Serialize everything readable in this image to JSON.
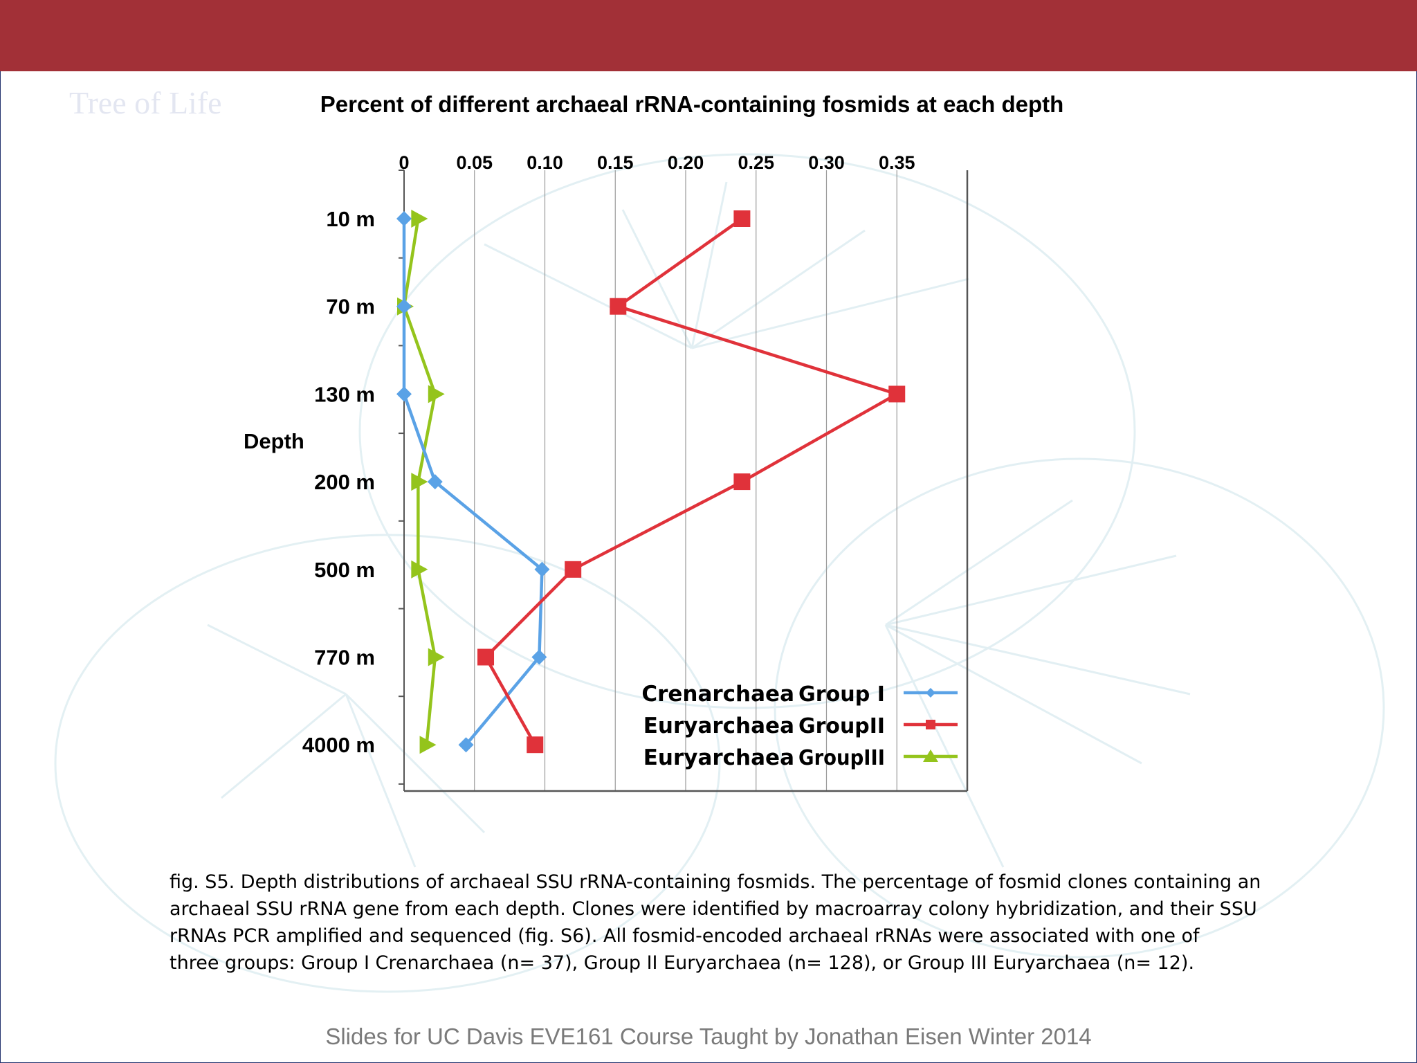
{
  "slide": {
    "background_heading": "Tree of Life",
    "caption_lines": [
      "fig. S5. Depth distributions of archaeal SSU rRNA-containing fosmids.  The percentage of fosmid clones containing an",
      "archaeal SSU rRNA gene from each depth. Clones were identified by macroarray colony hybridization, and their SSU",
      "rRNAs PCR amplified and sequenced (fig. S6).  All fosmid-encoded archaeal rRNAs were associated with one of",
      "three groups:  Group I Crenarchaea (n= 37), Group II Euryarchaea (n= 128),  or Group III Euryarchaea (n= 12)."
    ],
    "footer": "Slides for UC Davis EVE161 Course Taught by Jonathan Eisen Winter 2014",
    "colors": {
      "header_bar": "#a23037",
      "frame": "#22336e"
    }
  },
  "chart_data": {
    "type": "line",
    "orientation": "value-on-x, depth-on-y (inverted)",
    "title": "Percent of different archaeal rRNA-containing fosmids at each depth",
    "ylabel": "Depth",
    "xlabel": "",
    "categories": [
      "10 m",
      "70 m",
      "130 m",
      "200 m",
      "500 m",
      "770 m",
      "4000 m"
    ],
    "x_ticks": [
      "0",
      "0.05",
      "0.10",
      "0.15",
      "0.20",
      "0.25",
      "0.30",
      "0.35"
    ],
    "xlim": [
      0,
      0.4
    ],
    "grid": "vertical",
    "legend_position": "bottom-right",
    "series": [
      {
        "name_bold": "Crenarchaea",
        "name_group": "Group I",
        "color": "#5aa2e6",
        "marker": "diamond",
        "values": [
          0.0,
          0.0,
          0.0,
          0.022,
          0.098,
          0.096,
          0.044
        ]
      },
      {
        "name_bold": "Euryarchaea",
        "name_group": "GroupII",
        "color": "#e0323a",
        "marker": "square",
        "values": [
          0.24,
          0.152,
          0.35,
          0.24,
          0.12,
          0.058,
          0.093
        ]
      },
      {
        "name_bold": "Euryarchaea",
        "name_group": "GroupIII",
        "color": "#94c41c",
        "marker": "triangle",
        "values": [
          0.01,
          0.0,
          0.022,
          0.01,
          0.01,
          0.022,
          0.016
        ]
      }
    ]
  }
}
